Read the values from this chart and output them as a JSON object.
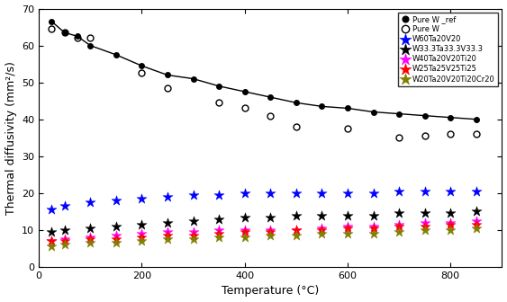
{
  "xlabel": "Temperature (°C)",
  "ylabel": "Thermal diffusivity (mm²/s)",
  "xlim": [
    0,
    900
  ],
  "ylim": [
    0,
    70
  ],
  "yticks": [
    0,
    10,
    20,
    30,
    40,
    50,
    60,
    70
  ],
  "xticks": [
    0,
    200,
    400,
    600,
    800
  ],
  "pure_w_ref_x": [
    25,
    50,
    75,
    100,
    150,
    200,
    250,
    300,
    350,
    400,
    450,
    500,
    550,
    600,
    650,
    700,
    750,
    800,
    850
  ],
  "pure_w_ref_y": [
    66.5,
    63.5,
    62.5,
    60,
    57.5,
    54.5,
    52,
    51,
    49,
    47.5,
    46,
    44.5,
    43.5,
    43,
    42,
    41.5,
    41,
    40.5,
    40
  ],
  "pure_w_x": [
    25,
    50,
    75,
    100,
    200,
    250,
    350,
    400,
    450,
    500,
    600,
    700,
    750,
    800,
    850
  ],
  "pure_w_y": [
    64.5,
    63.5,
    62,
    62,
    52.5,
    48.5,
    44.5,
    43,
    41,
    38,
    37.5,
    35,
    35.5,
    36,
    36
  ],
  "W60Ta20V20_x": [
    25,
    50,
    100,
    150,
    200,
    250,
    300,
    350,
    400,
    450,
    500,
    550,
    600,
    650,
    700,
    750,
    800,
    850
  ],
  "W60Ta20V20_y": [
    15.5,
    16.5,
    17.5,
    18,
    18.5,
    19,
    19.5,
    19.5,
    20,
    20,
    20,
    20,
    20,
    20,
    20.5,
    20.5,
    20.5,
    20.5
  ],
  "W33Ta33V33_x": [
    25,
    50,
    100,
    150,
    200,
    250,
    300,
    350,
    400,
    450,
    500,
    550,
    600,
    650,
    700,
    750,
    800,
    850
  ],
  "W33Ta33V33_y": [
    9.5,
    10,
    10.5,
    11,
    11.5,
    12,
    12.5,
    13,
    13.5,
    13.5,
    14,
    14,
    14,
    14,
    14.5,
    14.5,
    14.5,
    15
  ],
  "W40Ta20V20Ti20_x": [
    25,
    50,
    100,
    150,
    200,
    250,
    300,
    350,
    400,
    450,
    500,
    550,
    600,
    650,
    700,
    750,
    800,
    850
  ],
  "W40Ta20V20Ti20_y": [
    7,
    7.5,
    8,
    8.5,
    9,
    9.5,
    9.5,
    10,
    10,
    10,
    10,
    10.5,
    11,
    11,
    11.5,
    12,
    12,
    12.5
  ],
  "W25Ta25V25Ti25_x": [
    25,
    50,
    100,
    150,
    200,
    250,
    300,
    350,
    400,
    450,
    500,
    550,
    600,
    650,
    700,
    750,
    800,
    850
  ],
  "W25Ta25V25Ti25_y": [
    7,
    7,
    7.5,
    7.5,
    8,
    8.5,
    8.5,
    9,
    9.5,
    9.5,
    10,
    10,
    10.5,
    10.5,
    11,
    11,
    11.5,
    11.5
  ],
  "W20Ta20V20Ti20Cr20_x": [
    25,
    50,
    100,
    150,
    200,
    250,
    300,
    350,
    400,
    450,
    500,
    550,
    600,
    650,
    700,
    750,
    800,
    850
  ],
  "W20Ta20V20Ti20Cr20_y": [
    5.5,
    6,
    6.5,
    6.5,
    7,
    7.5,
    7.5,
    8,
    8,
    8.5,
    8.5,
    9,
    9,
    9,
    9.5,
    10,
    10,
    10.5
  ],
  "color_blue": "#0000FF",
  "color_black": "#000000",
  "color_magenta": "#FF00FF",
  "color_red": "#FF0000",
  "color_olive": "#808000",
  "legend_labels": [
    "Pure W _ref",
    "Pure W",
    "W60Ta20V20",
    "W33.3Ta33.3V33.3",
    "W40Ta20V20Ti20",
    "W25Ta25V25Ti25",
    "W20Ta20V20Ti20Cr20"
  ],
  "figsize": [
    5.63,
    3.36
  ],
  "dpi": 100
}
